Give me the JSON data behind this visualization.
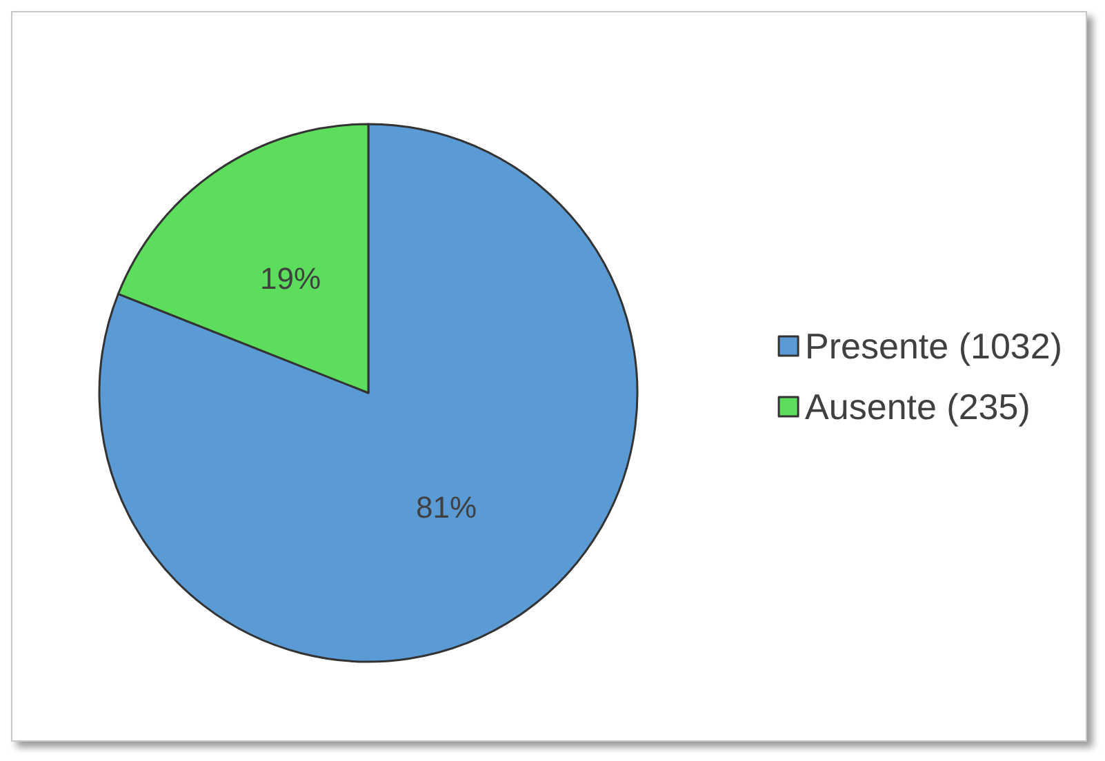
{
  "chart_data": {
    "type": "pie",
    "categories": [
      "Presente (1032)",
      "Ausente (235)"
    ],
    "values": [
      81,
      19
    ],
    "colors": [
      "#5b9bd5",
      "#5cdd5c"
    ],
    "value_labels": [
      "81%",
      "19%"
    ],
    "legend": "right"
  }
}
